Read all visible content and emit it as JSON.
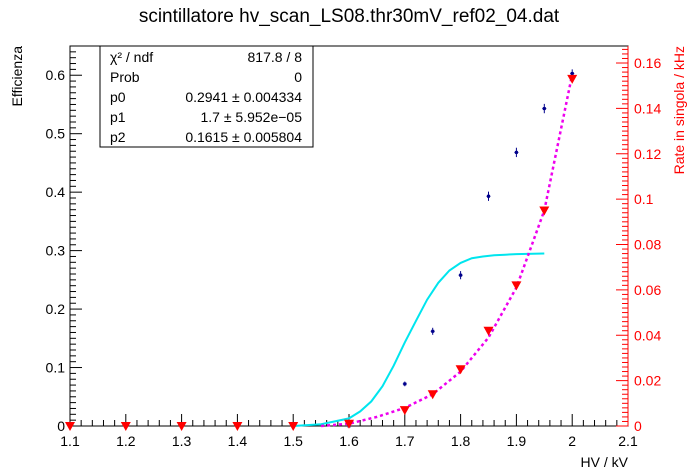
{
  "chart_data": {
    "type": "scatter",
    "title": "scintillatore hv_scan_LS08.thr30mV_ref02_04.dat",
    "xlabel": "HV / kV",
    "ylabel": "Efficienza",
    "y2label": "Rate in singola / kHz",
    "xlim": [
      1.1,
      2.1
    ],
    "ylim": [
      0,
      0.65
    ],
    "y2lim": [
      0,
      0.1675
    ],
    "xticks": [
      "1.1",
      "1.2",
      "1.3",
      "1.4",
      "1.5",
      "1.6",
      "1.7",
      "1.8",
      "1.9",
      "2",
      "2.1"
    ],
    "yticks": [
      "0",
      "0.1",
      "0.2",
      "0.3",
      "0.4",
      "0.5",
      "0.6"
    ],
    "y2ticks": [
      "0",
      "0.02",
      "0.04",
      "0.06",
      "0.08",
      "0.1",
      "0.12",
      "0.14",
      "0.16"
    ],
    "grid": false,
    "series": [
      {
        "kind": "efficiency",
        "color": "#00008b",
        "x": [
          1.1,
          1.2,
          1.3,
          1.4,
          1.5,
          1.6,
          1.7,
          1.75,
          1.8,
          1.85,
          1.9,
          1.95,
          2.0
        ],
        "y": [
          0.0,
          0.0,
          0.0,
          0.0,
          0.0,
          0.0,
          0.072,
          0.162,
          0.258,
          0.393,
          0.468,
          0.543,
          0.603
        ],
        "yerr": [
          0.0,
          0.0,
          0.0,
          0.0,
          0.0,
          0.0,
          0.004,
          0.006,
          0.007,
          0.008,
          0.008,
          0.008,
          0.007
        ]
      },
      {
        "kind": "rate",
        "axis": "right",
        "color": "#ff0000",
        "x": [
          1.1,
          1.2,
          1.3,
          1.4,
          1.5,
          1.6,
          1.7,
          1.75,
          1.8,
          1.85,
          1.9,
          1.95,
          2.0
        ],
        "y": [
          0.0,
          0.0,
          0.0,
          0.0,
          0.0,
          0.001,
          0.007,
          0.014,
          0.025,
          0.042,
          0.062,
          0.095,
          0.153
        ]
      },
      {
        "kind": "fit",
        "color": "#00e5ee",
        "style": "solid",
        "x": [
          1.5,
          1.55,
          1.6,
          1.62,
          1.64,
          1.66,
          1.68,
          1.7,
          1.72,
          1.74,
          1.76,
          1.78,
          1.8,
          1.82,
          1.84,
          1.86,
          1.88,
          1.9,
          1.95
        ],
        "y": [
          0.0,
          0.003,
          0.013,
          0.025,
          0.042,
          0.068,
          0.103,
          0.143,
          0.18,
          0.216,
          0.245,
          0.266,
          0.279,
          0.287,
          0.29,
          0.292,
          0.293,
          0.294,
          0.295
        ]
      },
      {
        "kind": "rate-fit",
        "axis": "right",
        "color": "#ee00ee",
        "style": "dotted",
        "x": [
          1.55,
          1.6,
          1.65,
          1.7,
          1.75,
          1.8,
          1.85,
          1.9,
          1.95,
          2.0
        ],
        "y": [
          0.0,
          0.001,
          0.004,
          0.008,
          0.014,
          0.024,
          0.039,
          0.061,
          0.095,
          0.155
        ]
      }
    ]
  },
  "stats": {
    "rows": [
      {
        "label": "χ² / ndf",
        "value": "817.8 / 8"
      },
      {
        "label": "Prob",
        "value": "0"
      },
      {
        "label": "p0",
        "value": "0.2941 ± 0.004334"
      },
      {
        "label": "p1",
        "value": "1.7 ± 5.952e−05"
      },
      {
        "label": "p2",
        "value": "0.1615 ± 0.005804"
      }
    ]
  }
}
